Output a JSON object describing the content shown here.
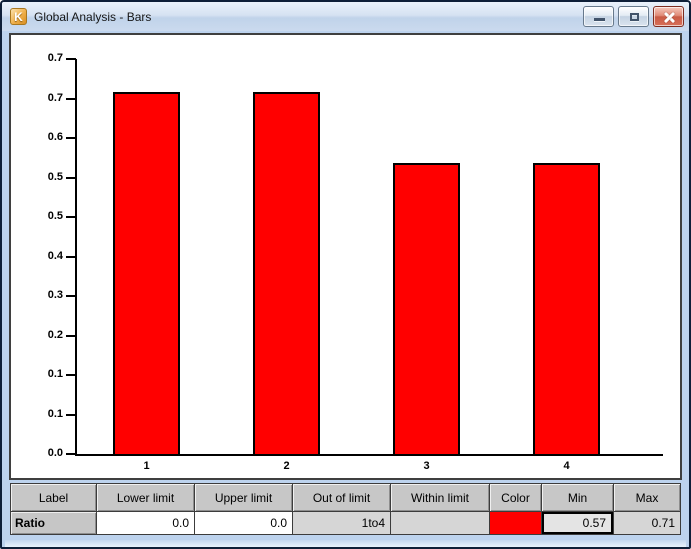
{
  "window": {
    "title": "Global Analysis - Bars",
    "icon_letter": "K",
    "controls": {
      "minimize": "minimize-window",
      "restore": "restore-window",
      "close": "close-window"
    }
  },
  "chart_data": {
    "type": "bar",
    "title": "",
    "xlabel": "",
    "ylabel": "",
    "categories": [
      "1",
      "2",
      "3",
      "4"
    ],
    "values": [
      0.71,
      0.71,
      0.57,
      0.57
    ],
    "bar_color": "#ff0000",
    "bar_border_color": "#000000",
    "y_tick_labels": [
      "0.7",
      "0.7",
      "0.6",
      "0.5",
      "0.5",
      "0.4",
      "0.3",
      "0.2",
      "0.1",
      "0.1",
      "0.0"
    ],
    "ylim": [
      0,
      0.775
    ],
    "grid": "off",
    "legend": "none"
  },
  "table": {
    "headers": [
      "Label",
      "Lower limit",
      "Upper limit",
      "Out of limit",
      "Within limit",
      "Color",
      "Min",
      "Max"
    ],
    "rows": [
      {
        "cells": [
          "Ratio",
          "0.0",
          "0.0",
          "1to4",
          "",
          "",
          "0.57",
          "0.71"
        ],
        "color_swatch": "#ff0000",
        "focused_cell": "Min"
      }
    ]
  },
  "colors": {
    "titlebar_top": "#eaf2fb",
    "titlebar_bottom": "#cbdaee",
    "frame": "#bdd3ee",
    "window_border": "#0e1f38",
    "header_cell": "#c7c7c7",
    "gray_cell": "#d6d6d6",
    "accent_red": "#ff0000"
  }
}
